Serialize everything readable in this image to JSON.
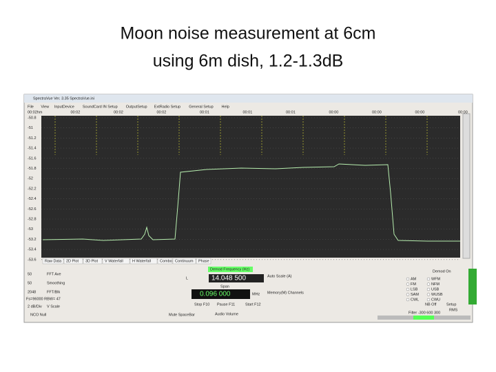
{
  "title": [
    "Moon noise measurement at 6cm",
    "using 6m dish,  1.2-1.3dB"
  ],
  "window": {
    "title": "SpectraVue Ver. 3.35  SpectraVue.ini",
    "menu": [
      "File",
      "View",
      "InputDevice",
      "SoundCard IN Setup",
      "OutputSetup",
      "ExtRadio Setup",
      "General Setup",
      "Help"
    ],
    "time_labels": [
      "00:02hm",
      "00:02",
      "00:02",
      "00:02",
      "00:01",
      "00:01",
      "00:01",
      "00:00",
      "00:00",
      "00:00",
      "00:00"
    ],
    "y_labels": [
      "-50.8",
      "-51",
      "-51.2",
      "-51.4",
      "-51.6",
      "-51.8",
      "-52",
      "-52.2",
      "-52.4",
      "-52.6",
      "-52.8",
      "-53",
      "-53.2",
      "-53.4",
      "-53.6"
    ],
    "tabs": [
      "Raw Data",
      "2D Plot",
      "3D Plot",
      "V Waterfall",
      "H Waterfall",
      "Combo",
      "Continuum",
      "Phase"
    ]
  },
  "controls": {
    "fft_ave": "50",
    "fft_ave_label": "FFT Ave",
    "smoothing": "50",
    "smoothing_label": "Smoothing",
    "fft_blk": "2048",
    "fft_blk_label": "FFT/Blk",
    "fs": "Fs=96000 RBW= 47",
    "vscale": "2 dB/Div",
    "vscale_label": "V Scale",
    "nco": "NCO Null",
    "demod_freq": "Demod Frequency (Hz)",
    "l": "L",
    "freq": "14.048 500",
    "mhz1": "MHz",
    "span": "Span",
    "span_value": "0.096 000",
    "mhz2": "MHz",
    "stop": "Stop F10",
    "pause": "Pause F11",
    "start": "Start F12",
    "mute": "Mute SpaceBar",
    "volume": "Audio Volume",
    "autoscale": "Auto Scale (A)",
    "memory": "Memory(M) Channels",
    "demod_on": "Demod On",
    "modes": [
      "AM",
      "WFM",
      "FM",
      "NFM",
      "LSB",
      "USB",
      "SAM",
      "WUSB",
      "CWL",
      "CWU"
    ],
    "nb": "NB Off",
    "setup": "Setup",
    "rms": "RMS",
    "filter": "Filter -300 600 300"
  }
}
